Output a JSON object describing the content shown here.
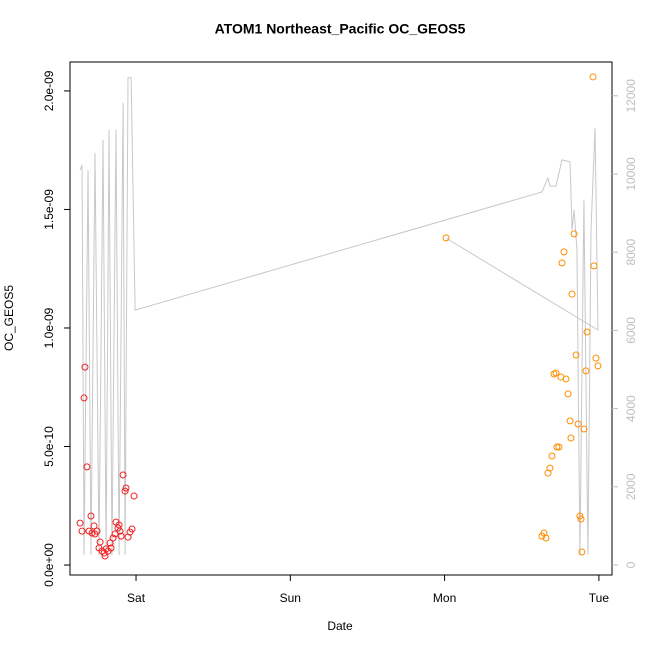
{
  "chart_data": {
    "type": "scatter",
    "title": "ATOM1 Northeast_Pacific OC_GEOS5",
    "x_label": "Date",
    "y_label": "OC_GEOS5",
    "xlim": [
      -0.428,
      3.085
    ],
    "xticks": [
      {
        "value": 0,
        "label": "Sat"
      },
      {
        "value": 1,
        "label": "Sun"
      },
      {
        "value": 2,
        "label": "Mon"
      },
      {
        "value": 3,
        "label": "Tue"
      }
    ],
    "ylim": [
      -4.2e-11,
      2.122e-09
    ],
    "yticks": [
      {
        "value": 0,
        "label": "0.0e+00"
      },
      {
        "value": 5e-10,
        "label": "5.0e-10"
      },
      {
        "value": 1e-09,
        "label": "1.0e-09"
      },
      {
        "value": 1.5e-09,
        "label": "1.5e-09"
      },
      {
        "value": 2e-09,
        "label": "2.0e-09"
      }
    ],
    "y2lim": [
      -255,
      12864
    ],
    "y2ticks": [
      0,
      2000,
      4000,
      6000,
      8000,
      10000,
      12000
    ],
    "y2_color": "#bebebe",
    "series": [
      {
        "type": "line",
        "axis": "y2",
        "color": "#c8c8c8",
        "x": [
          -0.363,
          -0.35,
          -0.337,
          -0.311,
          -0.292,
          -0.266,
          -0.24,
          -0.214,
          -0.194,
          -0.175,
          -0.156,
          -0.13,
          -0.11,
          -0.084,
          -0.071,
          -0.052,
          -0.032,
          -0.006,
          2.631,
          2.67,
          2.683,
          2.722,
          2.761,
          2.813,
          2.826,
          2.839,
          2.858,
          2.877,
          2.903,
          2.929,
          2.949,
          2.975,
          2.994,
          2.009
        ],
        "values": [
          10100,
          10230,
          260,
          10100,
          260,
          10540,
          260,
          10870,
          260,
          11130,
          260,
          11130,
          260,
          11820,
          260,
          12460,
          12460,
          6520,
          9540,
          9900,
          9690,
          9690,
          10360,
          10310,
          8570,
          9080,
          8060,
          260,
          9330,
          260,
          8570,
          11180,
          6010,
          8360
        ]
      },
      {
        "type": "scatter",
        "color": "#ee2222",
        "x": [
          -0.363,
          -0.35,
          -0.337,
          -0.331,
          -0.318,
          -0.305,
          -0.292,
          -0.285,
          -0.272,
          -0.266,
          -0.253,
          -0.24,
          -0.233,
          -0.22,
          -0.207,
          -0.201,
          -0.194,
          -0.181,
          -0.168,
          -0.162,
          -0.149,
          -0.136,
          -0.13,
          -0.117,
          -0.11,
          -0.104,
          -0.097,
          -0.084,
          -0.071,
          -0.065,
          -0.052,
          -0.039,
          -0.026,
          -0.013
        ],
        "values": [
          1.77e-10,
          1.43e-10,
          7.05e-10,
          8.35e-10,
          4.14e-10,
          1.43e-10,
          2.07e-10,
          1.35e-10,
          1.65e-10,
          1.31e-10,
          1.43e-10,
          7.2e-11,
          9.7e-11,
          5.9e-11,
          5.1e-11,
          3.8e-11,
          6.8e-11,
          5.9e-11,
          9.3e-11,
          7.2e-11,
          1.14e-10,
          1.31e-10,
          1.81e-10,
          1.56e-10,
          1.69e-10,
          1.43e-10,
          1.22e-10,
          3.8e-10,
          3.12e-10,
          3.25e-10,
          1.18e-10,
          1.39e-10,
          1.52e-10,
          2.91e-10
        ]
      },
      {
        "type": "scatter",
        "color": "#ff8c00",
        "x": [
          2.009,
          2.631,
          2.644,
          2.657,
          2.67,
          2.683,
          2.696,
          2.709,
          2.722,
          2.728,
          2.741,
          2.754,
          2.761,
          2.774,
          2.787,
          2.8,
          2.813,
          2.819,
          2.826,
          2.839,
          2.852,
          2.865,
          2.877,
          2.884,
          2.89,
          2.903,
          2.916,
          2.923,
          2.962,
          2.968,
          2.981,
          2.994
        ],
        "values": [
          1.38e-09,
          1.22e-10,
          1.35e-10,
          1.14e-10,
          3.88e-10,
          4.09e-10,
          4.6e-10,
          8.06e-10,
          8.1e-10,
          4.98e-10,
          4.98e-10,
          7.93e-10,
          1.274e-09,
          1.321e-09,
          7.85e-10,
          7.22e-10,
          6.08e-10,
          5.36e-10,
          1.143e-09,
          1.397e-09,
          8.86e-10,
          5.95e-10,
          2.07e-10,
          1.94e-10,
          5.5e-11,
          5.74e-10,
          8.19e-10,
          9.83e-10,
          2.059e-09,
          1.262e-09,
          8.73e-10,
          8.4e-10
        ]
      }
    ]
  }
}
